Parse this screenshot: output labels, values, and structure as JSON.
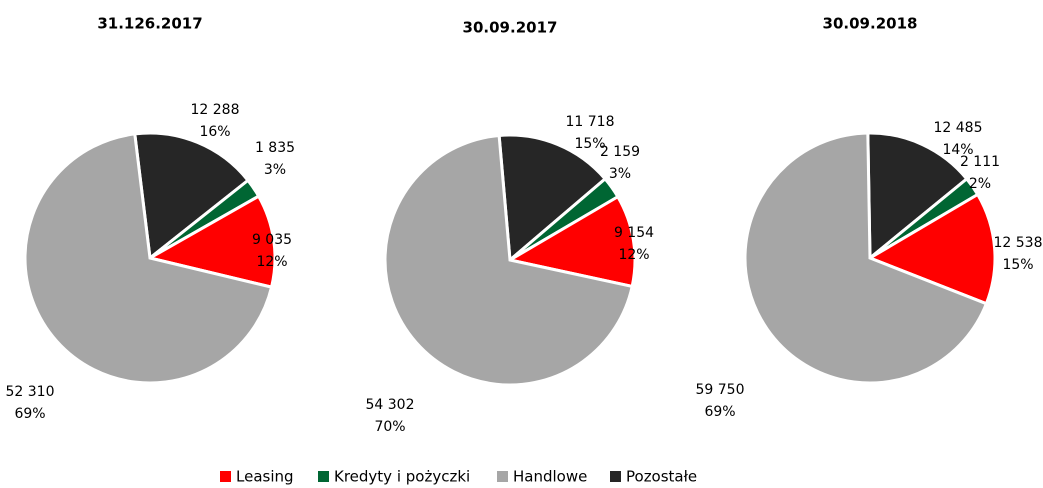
{
  "chart_data": [
    {
      "type": "pie",
      "title": "31.126.2017",
      "categories": [
        "Leasing",
        "Kredyty i pożyczki",
        "Handlowe",
        "Pozostałe"
      ],
      "values": [
        9035,
        1835,
        52310,
        12288
      ],
      "value_labels": [
        "9 035",
        "1 835",
        "52 310",
        "12 288"
      ],
      "percentage_labels": [
        "12%",
        "3%",
        "69%",
        "16%"
      ],
      "colors": [
        "#ff0000",
        "#006633",
        "#a6a6a6",
        "#262626"
      ],
      "legend": "bottom"
    },
    {
      "type": "pie",
      "title": "30.09.2017",
      "categories": [
        "Leasing",
        "Kredyty i pożyczki",
        "Handlowe",
        "Pozostałe"
      ],
      "values": [
        9154,
        2159,
        54302,
        11718
      ],
      "value_labels": [
        "9 154",
        "2 159",
        "54 302",
        "11 718"
      ],
      "percentage_labels": [
        "12%",
        "3%",
        "70%",
        "15%"
      ],
      "colors": [
        "#ff0000",
        "#006633",
        "#a6a6a6",
        "#262626"
      ],
      "legend": "bottom"
    },
    {
      "type": "pie",
      "title": "30.09.2018",
      "categories": [
        "Leasing",
        "Kredyty i pożyczki",
        "Handlowe",
        "Pozostałe"
      ],
      "values": [
        12538,
        2111,
        59750,
        12485
      ],
      "value_labels": [
        "12 538",
        "2 111",
        "59 750",
        "12 485"
      ],
      "percentage_labels": [
        "15%",
        "2%",
        "69%",
        "14%"
      ],
      "colors": [
        "#ff0000",
        "#006633",
        "#a6a6a6",
        "#262626"
      ],
      "legend": "bottom"
    }
  ]
}
